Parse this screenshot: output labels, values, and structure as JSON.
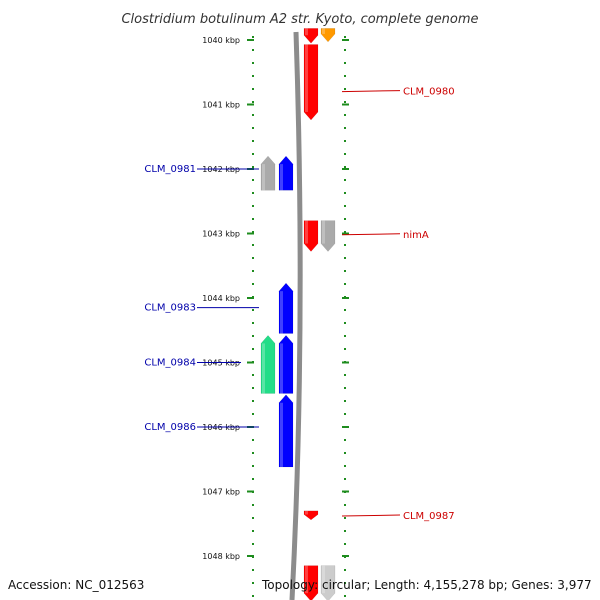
{
  "title": "Clostridium botulinum A2 str. Kyoto, complete genome",
  "footer": {
    "accession": "Accession: NC_012563",
    "topology": "Topology: circular; Length: 4,155,278 bp; Genes: 3,977"
  },
  "colors": {
    "backbone": "#8c8c8c",
    "tick": "#1e8c1e",
    "forward_label": "#cc0000",
    "reverse_label": "#0000aa"
  },
  "diagram": {
    "view_start_kbp": 1039.8,
    "view_end_kbp": 1048.7,
    "scale_ticks": [
      "1040 kbp",
      "1041 kbp",
      "1042 kbp",
      "1043 kbp",
      "1044 kbp",
      "1045 kbp",
      "1046 kbp",
      "1047 kbp",
      "1048 kbp"
    ],
    "genes": [
      {
        "strand": "+",
        "track": 1,
        "start_kbp": 1039.82,
        "end_kbp": 1040.05,
        "color": "#ff0000",
        "icon": "right-arrow-icon"
      },
      {
        "strand": "+",
        "track": 2,
        "start_kbp": 1039.82,
        "end_kbp": 1040.03,
        "color": "#ff9900",
        "icon": "right-arrow-icon"
      },
      {
        "strand": "+",
        "track": 1,
        "start_kbp": 1040.07,
        "end_kbp": 1041.24,
        "color": "#ff0000",
        "label": "CLM_0980",
        "label_at_kbp": 1040.8,
        "icon": "right-arrow-icon"
      },
      {
        "strand": "-",
        "track": 2,
        "start_kbp": 1041.8,
        "end_kbp": 1042.33,
        "color": "#aaaaaa",
        "icon": "left-arrow-icon"
      },
      {
        "strand": "-",
        "track": 1,
        "start_kbp": 1041.8,
        "end_kbp": 1042.33,
        "color": "#0000ff",
        "label": "CLM_0981",
        "label_at_kbp": 1042.0,
        "icon": "left-arrow-icon"
      },
      {
        "strand": "+",
        "track": 1,
        "start_kbp": 1042.8,
        "end_kbp": 1043.28,
        "color": "#ff0000",
        "label": "nimA",
        "label_at_kbp": 1043.02,
        "icon": "right-arrow-icon"
      },
      {
        "strand": "+",
        "track": 2,
        "start_kbp": 1042.8,
        "end_kbp": 1043.28,
        "color": "#aaaaaa",
        "icon": "right-arrow-icon"
      },
      {
        "strand": "-",
        "track": 1,
        "start_kbp": 1043.77,
        "end_kbp": 1044.55,
        "color": "#0000ff",
        "label": "CLM_0983",
        "label_at_kbp": 1044.15,
        "icon": "left-arrow-icon"
      },
      {
        "strand": "-",
        "track": 2,
        "start_kbp": 1044.58,
        "end_kbp": 1045.48,
        "color": "#22dd88",
        "label": "CLM_0984",
        "label_at_kbp": 1045.0,
        "icon": "left-arrow-icon"
      },
      {
        "strand": "-",
        "track": 1,
        "start_kbp": 1044.58,
        "end_kbp": 1045.48,
        "color": "#0000ff",
        "icon": "left-arrow-icon"
      },
      {
        "strand": "-",
        "track": 1,
        "start_kbp": 1045.5,
        "end_kbp": 1046.62,
        "color": "#0000ff",
        "label": "CLM_0986",
        "label_at_kbp": 1046.0,
        "icon": "left-arrow-icon"
      },
      {
        "strand": "+",
        "track": 1,
        "start_kbp": 1047.3,
        "end_kbp": 1047.44,
        "color": "#ff0000",
        "label": "CLM_0987",
        "label_at_kbp": 1047.38,
        "icon": "right-arrow-icon"
      },
      {
        "strand": "+",
        "track": 1,
        "start_kbp": 1048.15,
        "end_kbp": 1048.7,
        "color": "#ff0000",
        "icon": "right-arrow-icon"
      },
      {
        "strand": "+",
        "track": 2,
        "start_kbp": 1048.15,
        "end_kbp": 1048.7,
        "color": "#cccccc",
        "icon": "right-arrow-icon"
      }
    ]
  }
}
